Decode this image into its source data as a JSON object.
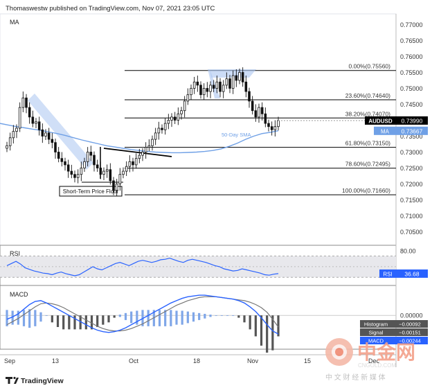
{
  "header": {
    "publisher": "Thomaswestw published on TradingView.com, Nov 07, 2021 23:05 UTC",
    "indicator": "MA"
  },
  "footer": {
    "brand": "TradingView",
    "watermark_cn": "中金网",
    "watermark_en": "CNGOLD.COM",
    "watermark_tagline": "中 文 财 经 新 媒 体"
  },
  "colors": {
    "up": "#111111",
    "down": "#111111",
    "sma": "#6fa0e6",
    "macd": "#2962ff",
    "signal": "#777777",
    "rsi": "#2962ff",
    "channel": "#aac4f0",
    "fib": "#000000"
  },
  "chart_data": [
    {
      "type": "candlestick",
      "symbol": "AUDUSD",
      "price_label": "0.73990",
      "x_ticks": [
        "Sep",
        "13",
        "Oct",
        "18",
        "Nov",
        "15",
        "Dec"
      ],
      "y_ticks": [
        "0.77000",
        "0.76500",
        "0.76000",
        "0.75500",
        "0.75000",
        "0.74500",
        "0.74000",
        "0.73500",
        "0.73000",
        "0.72500",
        "0.72000",
        "0.71500",
        "0.71000",
        "0.70500"
      ],
      "ylim": [
        0.7025,
        0.7725
      ],
      "fib_levels": [
        {
          "label": "0.00%(0.75560)",
          "value": 0.7556
        },
        {
          "label": "23.60%(0.74640)",
          "value": 0.7464
        },
        {
          "label": "38.20%(0.74070)",
          "value": 0.7407
        },
        {
          "label": "61.80%(0.73150)",
          "value": 0.7315
        },
        {
          "label": "78.60%(0.72495)",
          "value": 0.72495
        },
        {
          "label": "100.00%(0.71660)",
          "value": 0.7166
        }
      ],
      "sma": {
        "name": "50-Day SMA",
        "legend": "MA",
        "value_label": "0.73667"
      },
      "annotations": [
        "Short-Term Price Floor",
        "50-Day SMA"
      ],
      "close_series": [
        0.732,
        0.7345,
        0.7365,
        0.7375,
        0.744,
        0.747,
        0.744,
        0.741,
        0.739,
        0.7395,
        0.737,
        0.735,
        0.736,
        0.734,
        0.733,
        0.73,
        0.728,
        0.727,
        0.726,
        0.724,
        0.723,
        0.722,
        0.723,
        0.725,
        0.727,
        0.73,
        0.729,
        0.726,
        0.725,
        0.723,
        0.724,
        0.7245,
        0.721,
        0.718,
        0.72,
        0.723,
        0.724,
        0.7255,
        0.727,
        0.726,
        0.728,
        0.729,
        0.73,
        0.7315,
        0.732,
        0.734,
        0.736,
        0.7375,
        0.737,
        0.739,
        0.74,
        0.741,
        0.74,
        0.742,
        0.743,
        0.746,
        0.748,
        0.75,
        0.752,
        0.751,
        0.748,
        0.75,
        0.749,
        0.751,
        0.75,
        0.752,
        0.749,
        0.751,
        0.753,
        0.75,
        0.754,
        0.7525,
        0.755,
        0.752,
        0.749,
        0.746,
        0.743,
        0.741,
        0.744,
        0.742,
        0.739,
        0.738,
        0.737,
        0.738,
        0.7399
      ],
      "sma_series": [
        0.739,
        0.7385,
        0.738,
        0.7376,
        0.7372,
        0.7368,
        0.7363,
        0.7358,
        0.7352,
        0.7345,
        0.7338,
        0.7332,
        0.7326,
        0.732,
        0.7316,
        0.7312,
        0.7308,
        0.7305,
        0.7302,
        0.73,
        0.7299,
        0.7298,
        0.7298,
        0.7299,
        0.73,
        0.7302,
        0.7305,
        0.731,
        0.7318,
        0.7328,
        0.734,
        0.735,
        0.7358,
        0.7362,
        0.7367
      ]
    },
    {
      "type": "line",
      "name": "RSI",
      "value_label": "36.68",
      "y_ticks": [
        "80.00"
      ],
      "ylim": [
        20,
        85
      ],
      "band": [
        30,
        70
      ],
      "values": [
        52,
        56,
        60,
        55,
        48,
        45,
        42,
        40,
        38,
        37,
        35,
        38,
        40,
        37,
        35,
        33,
        35,
        40,
        45,
        50,
        46,
        44,
        48,
        52,
        56,
        58,
        55,
        52,
        56,
        60,
        62,
        60,
        58,
        60,
        63,
        64,
        66,
        63,
        60,
        58,
        62,
        64,
        62,
        60,
        58,
        55,
        52,
        50,
        46,
        44,
        42,
        43,
        46,
        44,
        42,
        40,
        38,
        35,
        34,
        36,
        37
      ]
    },
    {
      "type": "line",
      "name": "MACD",
      "y_ticks": [
        "0.00000"
      ],
      "legend": [
        {
          "label": "Histogram",
          "value": "−0.00092"
        },
        {
          "label": "Signal",
          "value": "−0.00151"
        },
        {
          "label": "MACD",
          "value": "−0.00244"
        }
      ],
      "ylim": [
        -0.004,
        0.0035
      ],
      "macd": [
        -0.0005,
        -0.0002,
        0.0002,
        0.0008,
        0.0014,
        0.0018,
        0.0019,
        0.0016,
        0.0012,
        0.0008,
        0.0004,
        0.0,
        -0.0004,
        -0.0008,
        -0.0012,
        -0.0016,
        -0.0019,
        -0.0021,
        -0.0022,
        -0.0021,
        -0.0019,
        -0.0016,
        -0.0012,
        -0.0008,
        -0.0004,
        0.0,
        0.0004,
        0.0008,
        0.0012,
        0.0016,
        0.0019,
        0.0022,
        0.0024,
        0.0025,
        0.0026,
        0.0026,
        0.0025,
        0.0024,
        0.0023,
        0.0022,
        0.0021,
        0.0019,
        0.0016,
        0.0011,
        0.0005,
        -0.0003,
        -0.0012,
        -0.002,
        -0.0024
      ],
      "signal": [
        -0.0012,
        -0.0008,
        -0.0004,
        0.0001,
        0.0006,
        0.0011,
        0.0015,
        0.0016,
        0.0015,
        0.0013,
        0.001,
        0.0006,
        0.0002,
        -0.0002,
        -0.0006,
        -0.001,
        -0.0014,
        -0.0017,
        -0.0019,
        -0.002,
        -0.002,
        -0.0019,
        -0.0017,
        -0.0014,
        -0.0011,
        -0.0007,
        -0.0003,
        0.0001,
        0.0005,
        0.0009,
        0.0013,
        0.0016,
        0.0019,
        0.0021,
        0.0023,
        0.0024,
        0.0024,
        0.0024,
        0.0023,
        0.0022,
        0.0021,
        0.002,
        0.0019,
        0.0017,
        0.0014,
        0.001,
        0.0004,
        -0.0005,
        -0.0015
      ]
    }
  ]
}
